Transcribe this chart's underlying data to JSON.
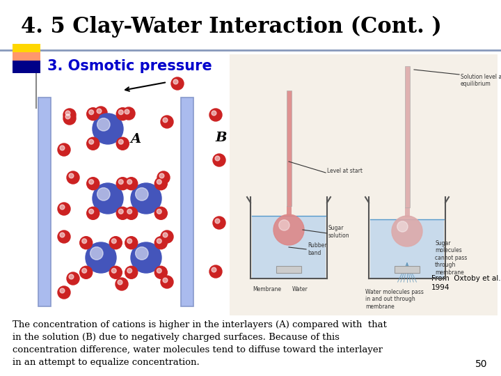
{
  "title": "4. 5 Clay-Water Interaction (Cont. )",
  "subtitle": "3. Osmotic pressure",
  "label_A": "A",
  "label_B": "B",
  "citation": "From  Oxtoby et al.,\n1994",
  "body_text": "The concentration of cations is higher in the interlayers (A) compared with  that\nin the solution (B) due to negatively charged surfaces. Because of this\nconcentration difference, water molecules tend to diffuse toward the interlayer\nin an attempt to equalize concentration.",
  "page_num": "50",
  "bg_color": "#ffffff",
  "title_color": "#000000",
  "subtitle_color": "#0000CC",
  "blue_ion_color": "#4455CC",
  "red_ion_color": "#CC2222",
  "membrane_color": "#AABBEE",
  "membrane_edge": "#8899CC"
}
